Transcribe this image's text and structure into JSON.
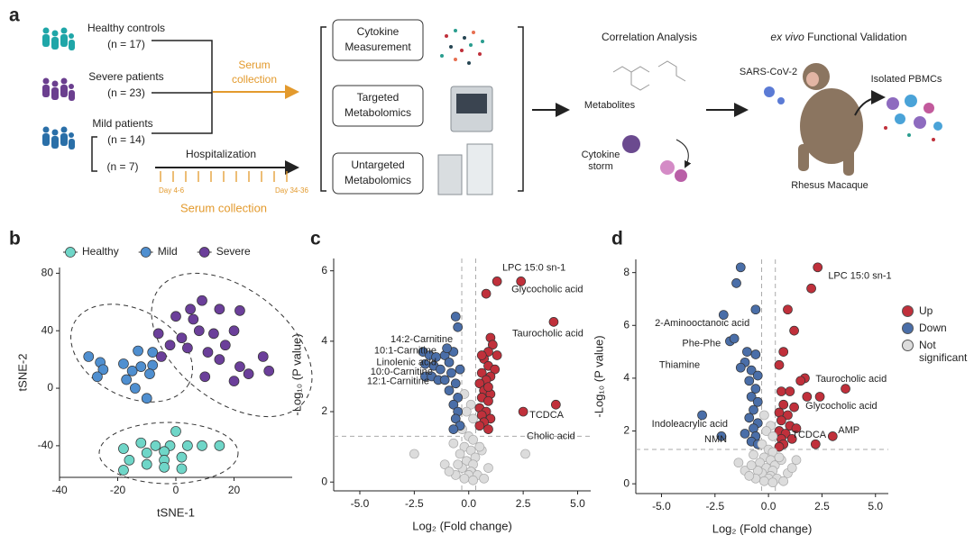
{
  "panel_labels": [
    "a",
    "b",
    "c",
    "d"
  ],
  "diagram": {
    "groups": [
      {
        "name": "Healthy controls",
        "n": "(n = 17)"
      },
      {
        "name": "Severe patients",
        "n": "(n = 23)"
      },
      {
        "name": "Mild patients",
        "n": "(n = 14)"
      }
    ],
    "subgroup": "(n = 7)",
    "serum_top": [
      "Serum",
      "collection"
    ],
    "hospitalization": "Hospitalization",
    "day_start": "Day 4-6",
    "day_end": "Day 34-36",
    "serum_bottom": "Serum collection",
    "assays": [
      [
        "Cytokine",
        "Measurement"
      ],
      [
        "Targeted",
        "Metabolomics"
      ],
      [
        "Untargeted",
        "Metabolomics"
      ]
    ],
    "correlation": "Correlation Analysis",
    "metabolites": "Metabolites",
    "cytokine_storm": [
      "Cytokine",
      "storm"
    ],
    "validation_italic": "ex vivo",
    "validation": "Functional Validation",
    "virus": "SARS-CoV-2",
    "pbmc": "Isolated PBMCs",
    "macaque": "Rhesus Macaque"
  },
  "chart_data": [
    {
      "type": "scatter",
      "x_label": "tSNE-1",
      "y_label": "tSNE-2",
      "xlim": [
        -40,
        40
      ],
      "ylim": [
        -62,
        84
      ],
      "xticks": [
        -40,
        -20,
        0,
        20
      ],
      "yticks": [
        -40,
        0,
        40,
        80
      ],
      "legend": "top",
      "series": [
        {
          "name": "Healthy",
          "color": "#6fd6c8",
          "x": [
            0,
            -12,
            -7,
            -2,
            4,
            9,
            15,
            -18,
            -10,
            -4,
            -16,
            -10,
            -4,
            2,
            -4,
            2,
            -18
          ],
          "values": [
            -30,
            -38,
            -40,
            -40,
            -40,
            -40,
            -40,
            -42,
            -45,
            -44,
            -50,
            -53,
            -50,
            -48,
            -55,
            -56,
            -57
          ]
        },
        {
          "name": "Mild",
          "color": "#4f8fd0",
          "x": [
            -30,
            -26,
            -25,
            -27,
            -18,
            -15,
            -12,
            -13,
            -8,
            -8,
            -9,
            -14,
            -17,
            -10
          ],
          "values": [
            22,
            18,
            13,
            8,
            17,
            12,
            15,
            26,
            25,
            16,
            10,
            0,
            6,
            -7
          ]
        },
        {
          "name": "Severe",
          "color": "#6b3f9a",
          "x": [
            5,
            9,
            15,
            22,
            0,
            6,
            20,
            8,
            13,
            2,
            -6,
            -2,
            4,
            11,
            17,
            15,
            22,
            30,
            25,
            32,
            10,
            20,
            -5
          ],
          "values": [
            55,
            61,
            55,
            54,
            50,
            48,
            40,
            40,
            38,
            35,
            38,
            30,
            28,
            25,
            30,
            20,
            15,
            22,
            10,
            12,
            8,
            5,
            22
          ]
        }
      ]
    },
    {
      "type": "scatter",
      "x_label": "Log₂ (Fold change)",
      "y_label": "-Log₁₀ (P value)",
      "xlim": [
        -6.2,
        5.6
      ],
      "ylim": [
        -0.25,
        6.35
      ],
      "xticks": [
        {
          "value": -5,
          "label": "-5.0"
        },
        -2.5,
        {
          "value": 0,
          "label": "0.0"
        },
        2.5,
        {
          "value": 5,
          "label": "5.0"
        }
      ],
      "yticks": [
        0,
        2,
        4,
        6
      ],
      "thresholds": {
        "x": [
          -0.32,
          0.32
        ],
        "y": 1.3
      },
      "series": [
        {
          "color": "#dcdcdc",
          "x": [
            -0.2,
            0.1,
            -0.1,
            0.2,
            -0.3,
            0,
            0.2,
            -0.2,
            0.1,
            -0.4,
            0.3,
            -0.1,
            0.2,
            -0.3,
            0.1,
            0,
            -0.2,
            0.4,
            0.2,
            -0.5,
            0.6,
            -0.7,
            0.5,
            -1.1,
            0.9,
            2.6,
            -2.5,
            -0.6,
            0.7,
            -0.9
          ],
          "values": [
            2.5,
            2.2,
            2,
            1.8,
            1.5,
            1.3,
            1.2,
            1,
            0.9,
            0.8,
            0.7,
            0.6,
            0.5,
            0.4,
            0.3,
            0.2,
            0.1,
            0.2,
            0.05,
            0.5,
            0.9,
            1.1,
            1,
            0.5,
            0.4,
            0.8,
            0.8,
            0.2,
            0.1,
            0.3
          ]
        },
        {
          "color": "#4a6ea8",
          "x": [
            -0.6,
            -0.5,
            -2.1,
            -1.8,
            -1.5,
            -1.1,
            -0.7,
            -0.9,
            -2,
            -1.6,
            -1.3,
            -0.8,
            -2,
            -1.7,
            -1.4,
            -1.1,
            -0.6,
            -0.9,
            -0.5,
            -0.7,
            -0.5,
            -0.6,
            -0.4,
            -0.7,
            -1,
            -0.4
          ],
          "values": [
            4.7,
            4.4,
            3.7,
            3.6,
            3.55,
            3.6,
            3.7,
            3.4,
            3.35,
            3.3,
            3.2,
            3.1,
            3,
            3,
            2.9,
            2.9,
            2.8,
            2.6,
            2.4,
            2.2,
            2,
            1.8,
            1.6,
            1.5,
            3.8,
            3.2
          ]
        },
        {
          "color": "#c0303b",
          "x": [
            1.3,
            2.4,
            0.8,
            3.9,
            1,
            1.1,
            0.9,
            1.3,
            0.7,
            0.9,
            1.2,
            0.6,
            1,
            0.8,
            0.5,
            0.7,
            1,
            0.6,
            0.9,
            0.5,
            0.8,
            0.6,
            1,
            0.7,
            0.5,
            0.9,
            2.5,
            4,
            0.6,
            0.9
          ],
          "values": [
            5.7,
            5.7,
            5.35,
            4.55,
            4.1,
            3.9,
            3.7,
            3.6,
            3.5,
            3.3,
            3.2,
            3.1,
            3,
            2.9,
            2.8,
            2.6,
            2.5,
            2.4,
            2.3,
            2.1,
            2,
            1.9,
            1.8,
            1.7,
            1.6,
            1.5,
            2,
            2.2,
            3.6,
            2.7
          ]
        }
      ],
      "annotations": [
        {
          "text": "LPC 15:0 sn-1",
          "x": 1.54,
          "y": 6.08
        },
        {
          "text": "Glycocholic acid",
          "x": 1.96,
          "y": 5.47
        },
        {
          "text": "Taurocholic acid",
          "x": 2.0,
          "y": 4.21
        },
        {
          "text": "TCDCA",
          "x": 2.79,
          "y": 1.9
        },
        {
          "text": "Cholic acid",
          "x": 2.66,
          "y": 1.3
        },
        {
          "text": "14:2-Carnitine",
          "x": -0.73,
          "y": 4.05
        },
        {
          "text": "10:1-Carnitine",
          "x": -1.48,
          "y": 3.72
        },
        {
          "text": "Linolenic acid",
          "x": -1.48,
          "y": 3.39
        },
        {
          "text": "10:0-Carnitine",
          "x": -1.65,
          "y": 3.13
        },
        {
          "text": "12:1-Carnitine",
          "x": -1.81,
          "y": 2.85
        }
      ]
    },
    {
      "type": "scatter",
      "x_label": "Log₂ (Fold change)",
      "y_label": "-Log₁₀ (P value)",
      "xlim": [
        -6.2,
        5.6
      ],
      "ylim": [
        -0.37,
        8.5
      ],
      "xticks": [
        {
          "value": -5,
          "label": "-5.0"
        },
        -2.5,
        {
          "value": 0,
          "label": "0.0"
        },
        2.5,
        {
          "value": 5,
          "label": "5.0"
        }
      ],
      "yticks": [
        0,
        2,
        4,
        6,
        8
      ],
      "thresholds": {
        "x": [
          -0.32,
          0.32
        ],
        "y": 1.3
      },
      "legend": "right",
      "series": [
        {
          "name": "Up",
          "color": "#c0303b",
          "x": [
            2.3,
            2,
            0.9,
            1.2,
            0.7,
            0.5,
            1.7,
            1.5,
            3.6,
            0.6,
            1,
            1.8,
            2.4,
            0.7,
            1.2,
            0.5,
            0.9,
            0.6,
            1,
            0.5,
            0.8,
            0.6,
            1.1,
            0.7,
            2.2,
            3,
            1.3,
            0.5
          ],
          "values": [
            8.2,
            7.4,
            6.6,
            5.8,
            5,
            4.5,
            4,
            3.9,
            3.6,
            3.5,
            3.5,
            3.3,
            3.3,
            3,
            2.9,
            2.7,
            2.6,
            2.4,
            2.2,
            2,
            1.9,
            1.7,
            1.7,
            1.5,
            1.5,
            1.8,
            2.1,
            1.4
          ]
        },
        {
          "name": "Down",
          "color": "#4a6ea8",
          "x": [
            -1.3,
            -1.5,
            -0.6,
            -2.1,
            -1.8,
            -1.6,
            -1,
            -0.6,
            -1.1,
            -1.3,
            -0.8,
            -0.5,
            -0.9,
            -0.6,
            -0.8,
            -0.5,
            -0.7,
            -0.9,
            -0.5,
            -0.7,
            -1.1,
            -0.6,
            -0.8,
            -3.1,
            -2.2,
            -0.5
          ],
          "values": [
            8.2,
            7.6,
            6.6,
            6.4,
            5.4,
            5.5,
            5,
            4.9,
            4.6,
            4.4,
            4.3,
            4.1,
            3.9,
            3.6,
            3.3,
            3.1,
            2.8,
            2.5,
            2.3,
            2.1,
            1.9,
            1.8,
            1.6,
            2.6,
            1.8,
            1.5
          ]
        },
        {
          "name": "Not significant",
          "color": "#dcdcdc",
          "x": [
            -0.2,
            0.1,
            -0.1,
            0.2,
            -0.3,
            0,
            0.2,
            -0.2,
            0.1,
            -0.4,
            0.3,
            -0.1,
            0.2,
            -0.3,
            0.1,
            0,
            -0.2,
            0.4,
            0.2,
            -0.5,
            0.6,
            -0.7,
            0.5,
            -1.1,
            0.9,
            1.3,
            -1.4,
            -0.6,
            0.7,
            -0.9,
            1.1,
            -0.8
          ],
          "values": [
            2.6,
            2.2,
            2,
            1.8,
            1.5,
            1.3,
            1.2,
            1,
            0.9,
            0.8,
            0.7,
            0.6,
            0.5,
            0.4,
            0.3,
            0.2,
            0.1,
            0.2,
            0.05,
            0.5,
            0.9,
            1.1,
            1,
            0.5,
            0.4,
            0.9,
            0.8,
            0.2,
            0.1,
            0.3,
            0.6,
            0.7
          ]
        }
      ],
      "annotations": [
        {
          "text": "LPC 15:0 sn-1",
          "x": 2.79,
          "y": 7.86
        },
        {
          "text": "2-Aminooctanoic acid",
          "x": -0.88,
          "y": 6.08
        },
        {
          "text": "Phe-Phe",
          "x": -2.23,
          "y": 5.3
        },
        {
          "text": "Thiamine",
          "x": -3.2,
          "y": 4.48
        },
        {
          "text": "Taurocholic acid",
          "x": 2.2,
          "y": 3.96
        },
        {
          "text": "Glycocholic acid",
          "x": 1.73,
          "y": 2.94
        },
        {
          "text": "Indoleacrylic acid",
          "x": -1.9,
          "y": 2.26
        },
        {
          "text": "NMN",
          "x": -1.94,
          "y": 1.68
        },
        {
          "text": "TCDCA",
          "x": 1.1,
          "y": 1.85
        },
        {
          "text": "AMP",
          "x": 3.25,
          "y": 2.02
        }
      ]
    }
  ]
}
